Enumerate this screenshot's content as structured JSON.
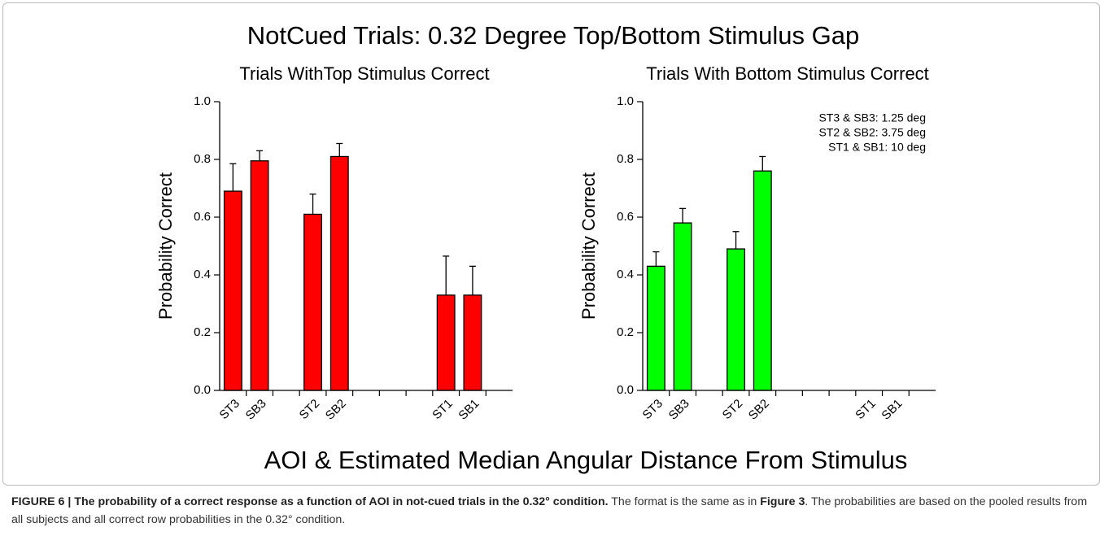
{
  "figure": {
    "title": "NotCued Trials: 0.32 Degree Top/Bottom Stimulus Gap",
    "xlabel": "AOI & Estimated Median Angular Distance From Stimulus"
  },
  "caption": [
    {
      "text": "FIGURE 6 | The probability of a correct response as a function of AOI in not-cued trials in the 0.32° condition.",
      "bold": true
    },
    {
      "text": " The format is the same as in ",
      "bold": false
    },
    {
      "text": "Figure 3",
      "bold": true
    },
    {
      "text": ". The probabilities are based on the pooled results from all subjects and all correct row probabilities in the 0.32° condition.",
      "bold": false
    }
  ],
  "chart_data": [
    {
      "type": "bar",
      "title": "Trials WithTop Stimulus Correct",
      "ylabel": "Probability Correct",
      "categories": [
        "ST3",
        "SB3",
        null,
        "ST2",
        "SB2",
        null,
        null,
        null,
        "ST1",
        "SB1",
        null
      ],
      "values": [
        0.69,
        0.795,
        null,
        0.61,
        0.81,
        null,
        null,
        null,
        0.33,
        0.33,
        null
      ],
      "errors": [
        0.095,
        0.035,
        null,
        0.07,
        0.045,
        null,
        null,
        null,
        0.135,
        0.1,
        null
      ],
      "color": "#ff0000",
      "ylim": [
        0,
        1
      ],
      "yticks": [
        {
          "value": 0,
          "label": "0.0"
        },
        {
          "value": 0.2,
          "label": "0.2"
        },
        {
          "value": 0.4,
          "label": "0.4"
        },
        {
          "value": 0.6,
          "label": "0.6"
        },
        {
          "value": 0.8,
          "label": "0.8"
        },
        {
          "value": 1,
          "label": "1.0"
        }
      ]
    },
    {
      "type": "bar",
      "title": "Trials With Bottom Stimulus Correct",
      "ylabel": "Probability Correct",
      "categories": [
        "ST3",
        "SB3",
        null,
        "ST2",
        "SB2",
        null,
        null,
        null,
        "ST1",
        "SB1",
        null
      ],
      "values": [
        0.43,
        0.58,
        null,
        0.49,
        0.76,
        null,
        null,
        null,
        null,
        null,
        null
      ],
      "errors": [
        0.05,
        0.05,
        null,
        0.06,
        0.05,
        null,
        null,
        null,
        null,
        null,
        null
      ],
      "color": "#00ff00",
      "ylim": [
        0,
        1
      ],
      "yticks": [
        {
          "value": 0,
          "label": "0.0"
        },
        {
          "value": 0.2,
          "label": "0.2"
        },
        {
          "value": 0.4,
          "label": "0.4"
        },
        {
          "value": 0.6,
          "label": "0.6"
        },
        {
          "value": 0.8,
          "label": "0.8"
        },
        {
          "value": 1,
          "label": "1.0"
        }
      ],
      "annotations": [
        "ST3 & SB3: 1.25 deg",
        "ST2 & SB2: 3.75 deg",
        "ST1 & SB1: 10 deg"
      ]
    }
  ]
}
